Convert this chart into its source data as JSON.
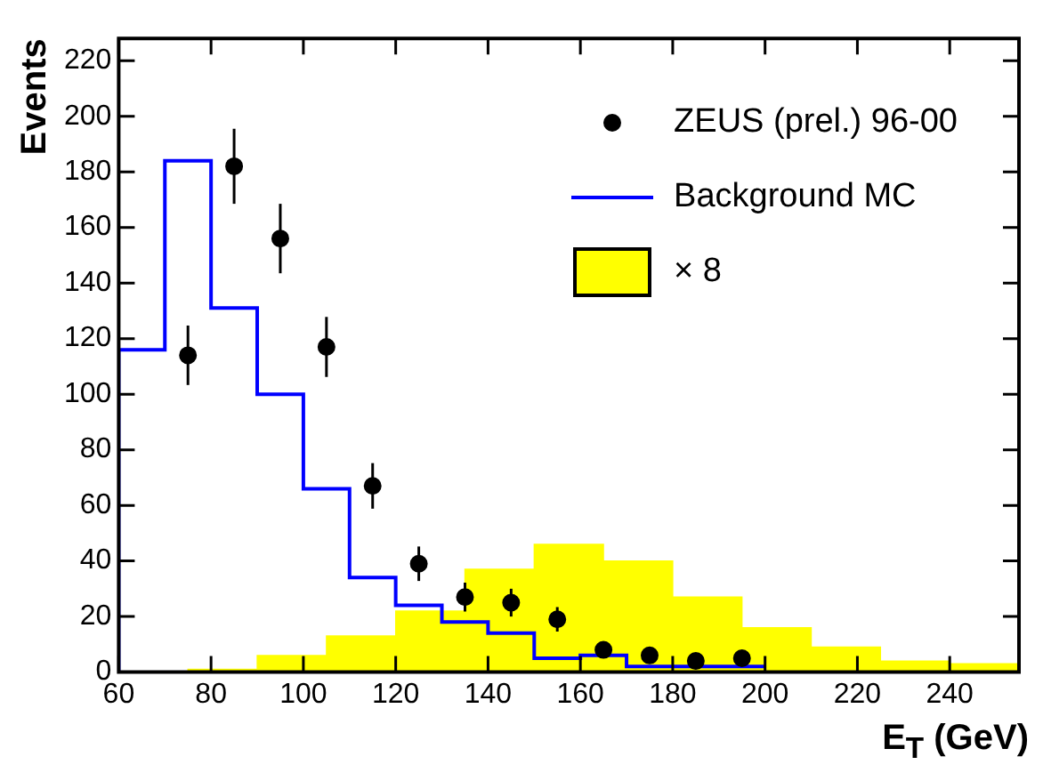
{
  "chart_data": {
    "type": "histogram",
    "xlabel": "E$_{T}$ (GeV)",
    "ylabel": "Events",
    "xlim": [
      60,
      255
    ],
    "xticks": [
      60,
      80,
      100,
      120,
      140,
      160,
      180,
      200,
      220,
      240
    ],
    "ylim": [
      0,
      228
    ],
    "yticks": [
      0,
      20,
      40,
      60,
      80,
      100,
      120,
      140,
      160,
      180,
      200,
      220
    ],
    "grid": false,
    "legend": "top right",
    "series": [
      {
        "name": "ZEUS (prel.) 96-00",
        "type": "scatter",
        "color": "#000000",
        "marker": "circle",
        "x": [
          75,
          85,
          95,
          105,
          115,
          125,
          135,
          145,
          155,
          165,
          175,
          185,
          195
        ],
        "values": [
          114,
          182,
          156,
          117,
          67,
          39,
          27,
          25,
          19,
          8,
          6,
          4,
          5
        ],
        "errors": [
          10.7,
          13.5,
          12.5,
          10.8,
          8.2,
          6.2,
          5.2,
          5,
          4.4,
          2.8,
          2.4,
          2,
          2.2
        ]
      },
      {
        "name": "Background MC",
        "type": "step",
        "color": "#0000ff",
        "x": [
          60,
          70,
          80,
          90,
          100,
          110,
          120,
          130,
          140,
          150,
          160,
          170,
          180,
          190,
          200
        ],
        "values": [
          0,
          116,
          184,
          131,
          100,
          66,
          34,
          24,
          18,
          14,
          5,
          6,
          2,
          2,
          2
        ]
      },
      {
        "name": "× 8",
        "color": "#ffff00",
        "bins": [
          60,
          75,
          90,
          105,
          120,
          135,
          150,
          165,
          180,
          195,
          210,
          225,
          240,
          255
        ],
        "values": [
          0,
          1,
          6,
          13,
          22,
          37,
          46,
          40,
          27,
          16,
          9,
          4,
          3
        ]
      }
    ]
  }
}
